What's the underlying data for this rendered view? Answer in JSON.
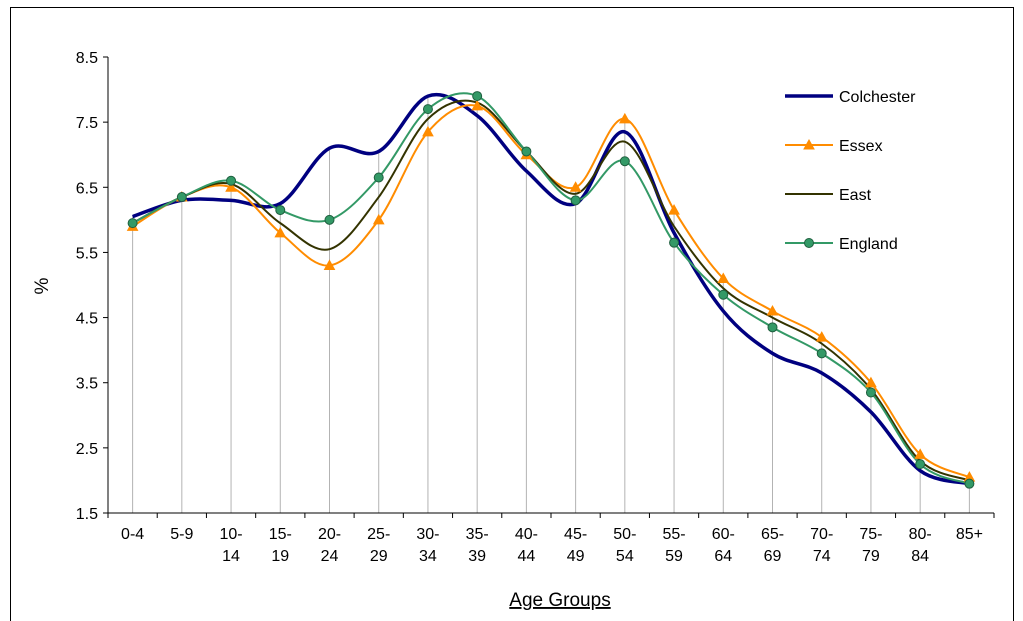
{
  "chart_data": {
    "type": "line",
    "xlabel": "Age Groups",
    "ylabel": "%",
    "ylim": [
      1.5,
      8.5
    ],
    "yticks": [
      "8.5",
      "7.5",
      "6.5",
      "5.5",
      "4.5",
      "3.5",
      "2.5",
      "1.5"
    ],
    "categories": [
      [
        "0-4",
        ""
      ],
      [
        "5-9",
        ""
      ],
      [
        "10-",
        "14"
      ],
      [
        "15-",
        "19"
      ],
      [
        "20-",
        "24"
      ],
      [
        "25-",
        "29"
      ],
      [
        "30-",
        "34"
      ],
      [
        "35-",
        "39"
      ],
      [
        "40-",
        "44"
      ],
      [
        "45-",
        "49"
      ],
      [
        "50-",
        "54"
      ],
      [
        "55-",
        "59"
      ],
      [
        "60-",
        "64"
      ],
      [
        "65-",
        "69"
      ],
      [
        "70-",
        "74"
      ],
      [
        "75-",
        "79"
      ],
      [
        "80-",
        "84"
      ],
      [
        "85+",
        ""
      ]
    ],
    "grid": "vertical drop lines at each category",
    "legend_position": "right",
    "series": [
      {
        "name": "Colchester",
        "color": "#000080",
        "marker": "none",
        "values": [
          6.05,
          6.3,
          6.3,
          6.25,
          7.1,
          7.05,
          7.9,
          7.6,
          6.75,
          6.25,
          7.35,
          5.8,
          4.6,
          3.95,
          3.65,
          3.05,
          2.15,
          1.95
        ]
      },
      {
        "name": "Essex",
        "color": "#FF8C00",
        "marker": "triangle",
        "values": [
          5.9,
          6.35,
          6.5,
          5.8,
          5.3,
          6.0,
          7.35,
          7.75,
          7.0,
          6.5,
          7.55,
          6.15,
          5.1,
          4.6,
          4.2,
          3.5,
          2.4,
          2.05
        ]
      },
      {
        "name": "East",
        "color": "#333300",
        "marker": "none",
        "values": [
          5.95,
          6.35,
          6.55,
          5.95,
          5.55,
          6.35,
          7.55,
          7.8,
          7.05,
          6.4,
          7.2,
          5.9,
          4.95,
          4.5,
          4.1,
          3.4,
          2.3,
          2.0
        ]
      },
      {
        "name": "England",
        "color": "#339966",
        "marker": "circle",
        "values": [
          5.95,
          6.35,
          6.6,
          6.15,
          6.0,
          6.65,
          7.7,
          7.9,
          7.05,
          6.3,
          6.9,
          5.65,
          4.85,
          4.35,
          3.95,
          3.35,
          2.25,
          1.95
        ]
      }
    ]
  }
}
